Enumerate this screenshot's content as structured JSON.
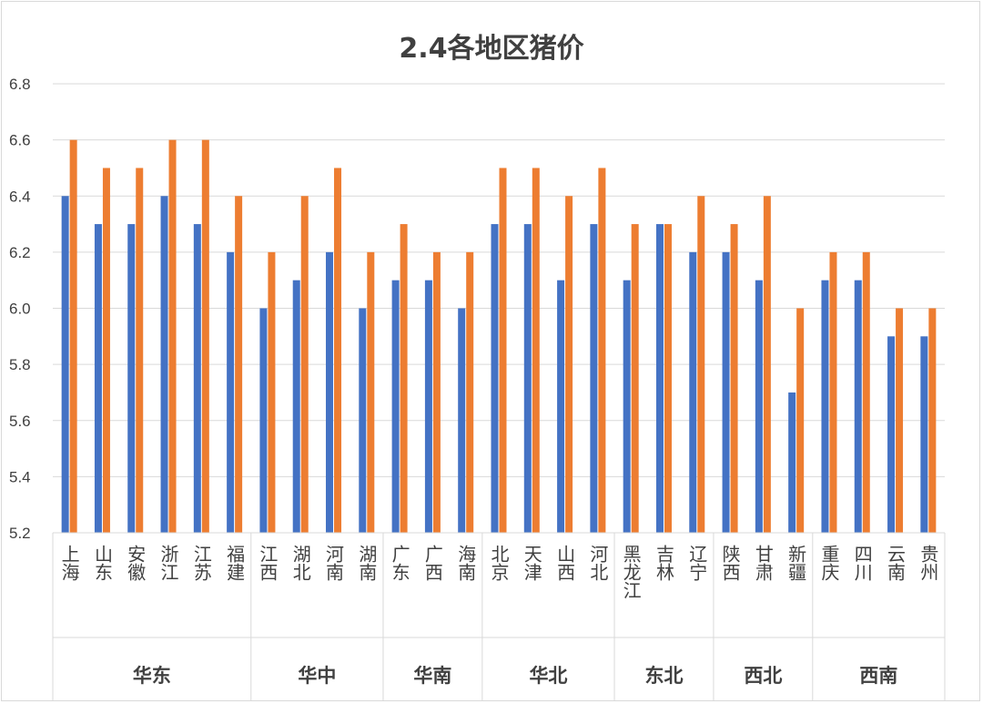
{
  "chart_data": {
    "type": "bar",
    "title": "2.4各地区猪价",
    "ylim": [
      5.2,
      6.8
    ],
    "yticks": [
      "5.2",
      "5.4",
      "5.6",
      "5.8",
      "6.0",
      "6.2",
      "6.4",
      "6.6",
      "6.8"
    ],
    "grid": true,
    "legend": "none",
    "colors": [
      "#4472c4",
      "#ed7d31"
    ],
    "groups": [
      {
        "name": "华东",
        "categories": [
          "上海",
          "山东",
          "安徽",
          "浙江",
          "江苏",
          "福建"
        ]
      },
      {
        "name": "华中",
        "categories": [
          "江西",
          "湖北",
          "河南",
          "湖南"
        ]
      },
      {
        "name": "华南",
        "categories": [
          "广东",
          "广西",
          "海南"
        ]
      },
      {
        "name": "华北",
        "categories": [
          "北京",
          "天津",
          "山西",
          "河北"
        ]
      },
      {
        "name": "东北",
        "categories": [
          "黑龙江",
          "吉林",
          "辽宁"
        ]
      },
      {
        "name": "西北",
        "categories": [
          "陕西",
          "甘肃",
          "新疆"
        ]
      },
      {
        "name": "西南",
        "categories": [
          "重庆",
          "四川",
          "云南",
          "贵州"
        ]
      }
    ],
    "series": [
      {
        "values": [
          6.4,
          6.3,
          6.3,
          6.4,
          6.3,
          6.2,
          6.0,
          6.1,
          6.2,
          6.0,
          6.1,
          6.1,
          6.0,
          6.3,
          6.3,
          6.1,
          6.3,
          6.1,
          6.3,
          6.2,
          6.2,
          6.1,
          5.7,
          6.1,
          6.1,
          5.9,
          5.9
        ]
      },
      {
        "values": [
          6.6,
          6.5,
          6.5,
          6.6,
          6.6,
          6.4,
          6.2,
          6.4,
          6.5,
          6.2,
          6.3,
          6.2,
          6.2,
          6.5,
          6.5,
          6.4,
          6.5,
          6.3,
          6.3,
          6.4,
          6.3,
          6.4,
          6.0,
          6.2,
          6.2,
          6.0,
          6.0
        ]
      }
    ]
  }
}
